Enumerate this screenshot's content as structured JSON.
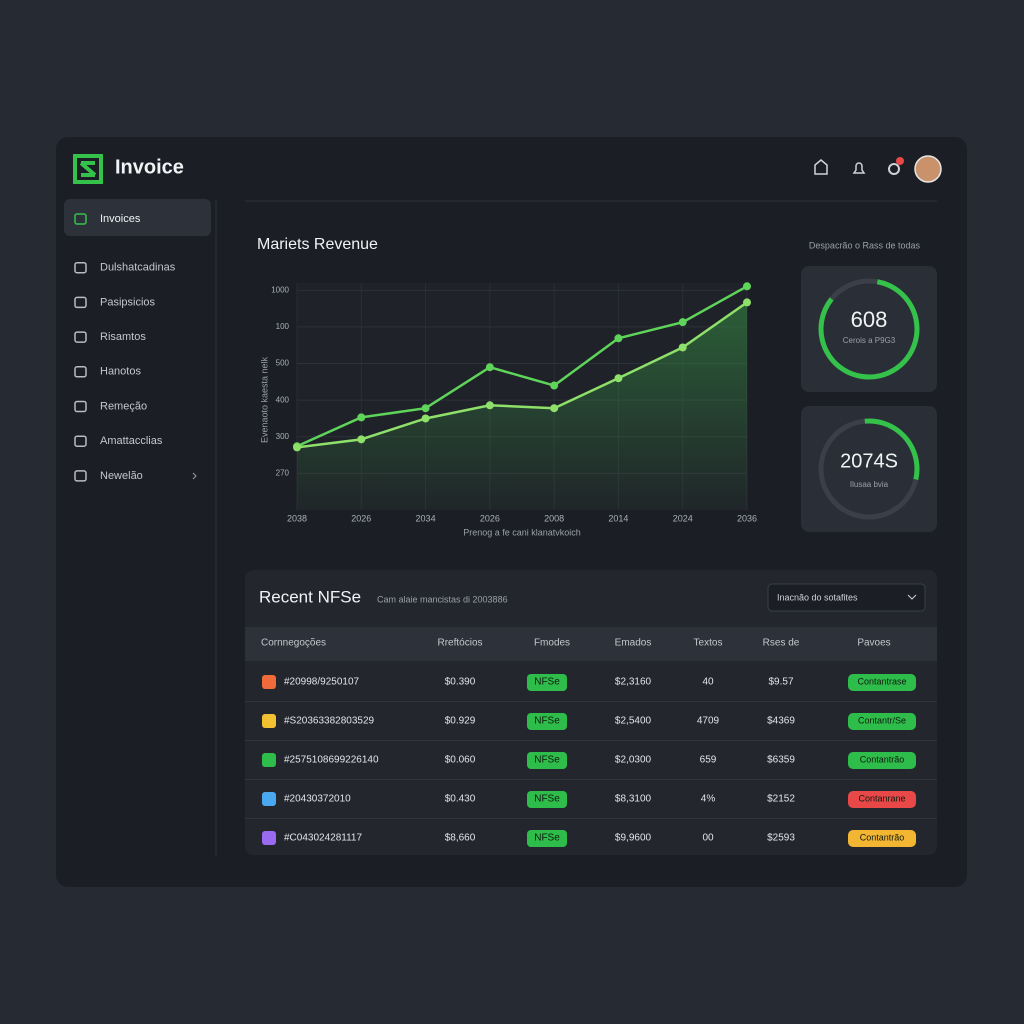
{
  "app": {
    "brand": "Invoice",
    "nav": [
      "Invoices",
      "Dulshatcadinas",
      "Pasipsicios",
      "Risamtos",
      "Hanotos",
      "Remeção",
      "Amattacclias",
      "Newelão"
    ]
  },
  "side_heading": "Despacrão o Rass de todas",
  "gauges": [
    {
      "value": "608",
      "label": "Cerois a P9G3"
    },
    {
      "value": "2074S",
      "label": "Ilusaa bvia"
    }
  ],
  "chart_data": {
    "type": "line",
    "title": "Mariets Revenue",
    "y_label": "Evenaoto kaesta nelk",
    "x_label": "Prenog a fe cani klanatvkoich",
    "categories": [
      "2038",
      "2026",
      "2034",
      "2026",
      "2008",
      "2014",
      "2024",
      "2036"
    ],
    "series": [
      {
        "color": "#5fd45a",
        "values": [
          574,
          653,
          678,
          790,
          740,
          869,
          913,
          1011
        ]
      },
      {
        "color": "#8fe06a",
        "values": [
          571,
          593,
          650,
          686,
          678,
          760,
          844,
          967
        ]
      }
    ],
    "ylim": [
      400,
      1020
    ],
    "yticks": [
      1000,
      {
        "value": 900,
        "label": "100"
      },
      {
        "value": 800,
        "label": "500"
      },
      {
        "value": 700,
        "label": "400"
      },
      {
        "value": 600,
        "label": "300"
      },
      {
        "value": 500,
        "label": "270"
      }
    ],
    "grid": true
  },
  "table": {
    "title": "Recent NFSe",
    "subtitle": "Cam alaie mancistas di 2003886",
    "dropdown": "Inacnão do sotafites",
    "columns": [
      "Cornnegoções",
      "Rreftócios",
      "Fmodes",
      "Emados",
      "Textos",
      "Rses de",
      "Pavoes"
    ],
    "rows": [
      {
        "icon_color": "#f06a3a",
        "status_color": "#2ebd4a",
        "cells": [
          "#20998/9250107",
          "$0.390",
          "NFSe",
          "$2,3160",
          "40",
          "$9.57",
          "Contantrase"
        ]
      },
      {
        "icon_color": "#f2c030",
        "status_color": "#2ebd4a",
        "cells": [
          "#S20363382803529",
          "$0.929",
          "NFSe",
          "$2,5400",
          "4709",
          "$4369",
          "Contantr/Se"
        ]
      },
      {
        "icon_color": "#2ebd4a",
        "status_color": "#2ebd4a",
        "cells": [
          "#2575108699226140",
          "$0.060",
          "NFSe",
          "$2,0300",
          "659",
          "$6359",
          "Contantrão"
        ]
      },
      {
        "icon_color": "#4aa8f0",
        "status_color": "#e84848",
        "cells": [
          "#20430372010",
          "$0.430",
          "NFSe",
          "$8,3100",
          "4%",
          "$2152",
          "Contanrane"
        ]
      },
      {
        "icon_color": "#9a6af0",
        "status_color": "#f2b632",
        "cells": [
          "#C043024281117",
          "$8,660",
          "NFSe",
          "$9,9600",
          "00",
          "$2593",
          "Contantrão"
        ]
      }
    ]
  }
}
